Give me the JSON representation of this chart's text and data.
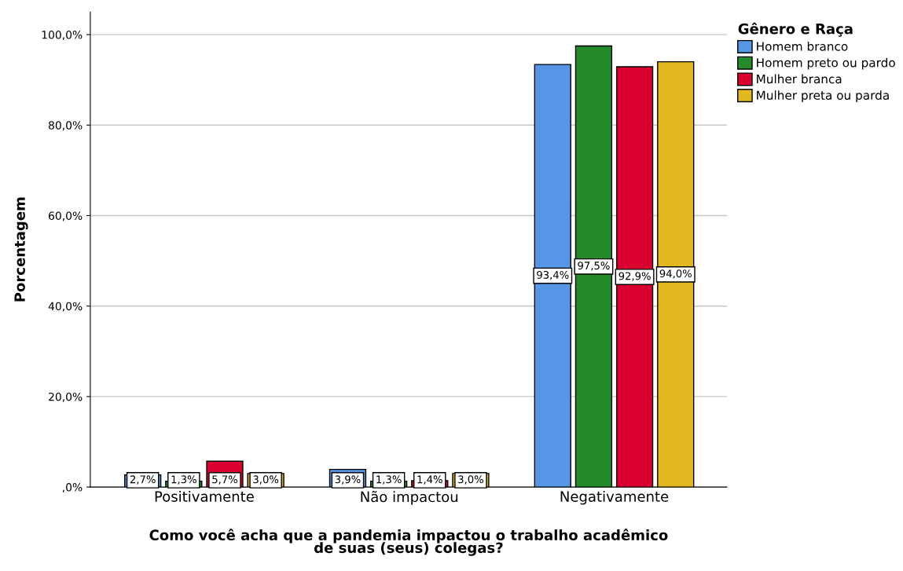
{
  "chart_data": {
    "type": "bar",
    "categories": [
      "Positivamente",
      "Não impactou",
      "Negativamente"
    ],
    "series": [
      {
        "name": "Homem branco",
        "color": "#5596e6",
        "values": [
          2.7,
          3.9,
          93.4
        ],
        "value_labels": [
          "2,7%",
          "3,9%",
          "93,4%"
        ]
      },
      {
        "name": "Homem preto ou pardo",
        "color": "#248a2a",
        "values": [
          1.3,
          1.3,
          97.5
        ],
        "value_labels": [
          "1,3%",
          "1,3%",
          "97,5%"
        ]
      },
      {
        "name": "Mulher branca",
        "color": "#d9002f",
        "values": [
          5.7,
          1.4,
          92.9
        ],
        "value_labels": [
          "5,7%",
          "1,4%",
          "92,9%"
        ]
      },
      {
        "name": "Mulher preta ou parda",
        "color": "#e1b81e",
        "values": [
          3.0,
          3.0,
          94.0
        ],
        "value_labels": [
          "3,0%",
          "3,0%",
          "94,0%"
        ]
      }
    ],
    "xlabel": "Como você acha que a pandemia impactou o trabalho acadêmico\nde suas (seus) colegas?",
    "ylabel": "Porcentagem",
    "legend_title": "Gênero e Raça",
    "ylim": [
      0,
      105
    ],
    "yticks": [
      {
        "value": 0,
        "label": ",0%"
      },
      {
        "value": 20,
        "label": "20,0%"
      },
      {
        "value": 40,
        "label": "40,0%"
      },
      {
        "value": 60,
        "label": "60,0%"
      },
      {
        "value": 80,
        "label": "80,0%"
      },
      {
        "value": 100,
        "label": "100,0%"
      }
    ],
    "grid": "y",
    "legend": "top right"
  }
}
